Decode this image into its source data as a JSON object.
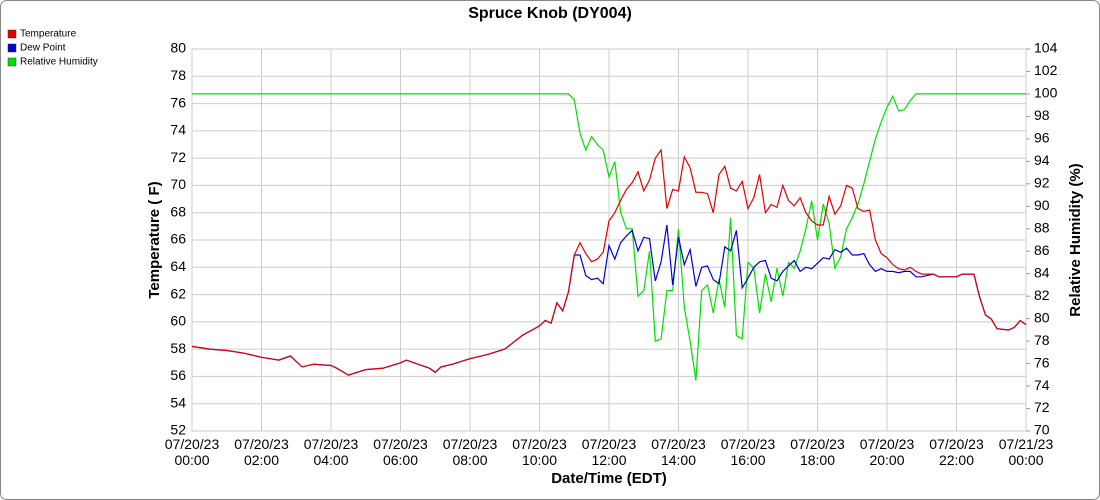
{
  "chart_data": {
    "type": "line",
    "title": "Spruce Knob (DY004)",
    "x_label": "Date/Time (EDT)",
    "y_label": "Temperature ( F)",
    "y2_label": "Relative Humidity (%)",
    "xlim": [
      "07/20/23 00:00",
      "07/21/23 00:00"
    ],
    "xticks": [
      "07/20/23 00:00",
      "07/20/23 02:00",
      "07/20/23 04:00",
      "07/20/23 06:00",
      "07/20/23 08:00",
      "07/20/23 10:00",
      "07/20/23 12:00",
      "07/20/23 14:00",
      "07/20/23 16:00",
      "07/20/23 18:00",
      "07/20/23 20:00",
      "07/20/23 22:00",
      "07/21/23 00:00"
    ],
    "ylim": [
      52,
      80
    ],
    "yticks": [
      52,
      54,
      56,
      58,
      60,
      62,
      64,
      66,
      68,
      70,
      72,
      74,
      76,
      78,
      80
    ],
    "y2lim": [
      70,
      104
    ],
    "y2ticks": [
      70,
      72,
      74,
      76,
      78,
      80,
      82,
      84,
      86,
      88,
      90,
      92,
      94,
      96,
      98,
      100,
      102,
      104
    ],
    "grid": true,
    "legend": "top-left",
    "x": [
      "07/20/23 00:00",
      "07/20/23 00:30",
      "07/20/23 01:00",
      "07/20/23 01:30",
      "07/20/23 02:00",
      "07/20/23 02:30",
      "07/20/23 02:50",
      "07/20/23 03:10",
      "07/20/23 03:30",
      "07/20/23 04:00",
      "07/20/23 04:10",
      "07/20/23 04:30",
      "07/20/23 05:00",
      "07/20/23 05:30",
      "07/20/23 06:00",
      "07/20/23 06:10",
      "07/20/23 06:30",
      "07/20/23 06:50",
      "07/20/23 07:00",
      "07/20/23 07:10",
      "07/20/23 07:30",
      "07/20/23 08:00",
      "07/20/23 08:30",
      "07/20/23 09:00",
      "07/20/23 09:30",
      "07/20/23 10:00",
      "07/20/23 10:10",
      "07/20/23 10:20",
      "07/20/23 10:30",
      "07/20/23 10:40",
      "07/20/23 10:50",
      "07/20/23 11:00",
      "07/20/23 11:10",
      "07/20/23 11:20",
      "07/20/23 11:30",
      "07/20/23 11:40",
      "07/20/23 11:50",
      "07/20/23 12:00",
      "07/20/23 12:10",
      "07/20/23 12:20",
      "07/20/23 12:30",
      "07/20/23 12:40",
      "07/20/23 12:50",
      "07/20/23 13:00",
      "07/20/23 13:10",
      "07/20/23 13:20",
      "07/20/23 13:30",
      "07/20/23 13:40",
      "07/20/23 13:50",
      "07/20/23 14:00",
      "07/20/23 14:10",
      "07/20/23 14:20",
      "07/20/23 14:30",
      "07/20/23 14:40",
      "07/20/23 14:50",
      "07/20/23 15:00",
      "07/20/23 15:10",
      "07/20/23 15:20",
      "07/20/23 15:30",
      "07/20/23 15:40",
      "07/20/23 15:50",
      "07/20/23 16:00",
      "07/20/23 16:10",
      "07/20/23 16:20",
      "07/20/23 16:30",
      "07/20/23 16:40",
      "07/20/23 16:50",
      "07/20/23 17:00",
      "07/20/23 17:10",
      "07/20/23 17:20",
      "07/20/23 17:30",
      "07/20/23 17:40",
      "07/20/23 17:50",
      "07/20/23 18:00",
      "07/20/23 18:10",
      "07/20/23 18:20",
      "07/20/23 18:30",
      "07/20/23 18:40",
      "07/20/23 18:50",
      "07/20/23 19:00",
      "07/20/23 19:10",
      "07/20/23 19:20",
      "07/20/23 19:30",
      "07/20/23 19:40",
      "07/20/23 19:50",
      "07/20/23 20:00",
      "07/20/23 20:10",
      "07/20/23 20:20",
      "07/20/23 20:30",
      "07/20/23 20:40",
      "07/20/23 20:50",
      "07/20/23 21:00",
      "07/20/23 21:20",
      "07/20/23 21:30",
      "07/20/23 22:00",
      "07/20/23 22:10",
      "07/20/23 22:30",
      "07/20/23 22:40",
      "07/20/23 22:50",
      "07/20/23 23:00",
      "07/20/23 23:10",
      "07/20/23 23:30",
      "07/20/23 23:40",
      "07/20/23 23:50",
      "07/21/23 00:00"
    ],
    "series": [
      {
        "name": "Temperature",
        "color": "#e00000",
        "values": [
          58.2,
          58.0,
          57.9,
          57.7,
          57.4,
          57.2,
          57.5,
          56.7,
          56.9,
          56.8,
          56.6,
          56.1,
          56.5,
          56.6,
          57.0,
          57.2,
          56.9,
          56.6,
          56.3,
          56.7,
          56.9,
          57.3,
          57.6,
          58.0,
          59.0,
          59.7,
          60.1,
          59.9,
          61.4,
          60.8,
          62.2,
          64.9,
          65.8,
          65.0,
          64.4,
          64.6,
          65.1,
          67.4,
          68.0,
          68.9,
          69.7,
          70.2,
          71.0,
          69.6,
          70.4,
          72.0,
          72.6,
          68.3,
          69.7,
          69.6,
          72.1,
          71.3,
          69.5,
          69.5,
          69.4,
          68.0,
          70.8,
          71.4,
          69.8,
          69.6,
          70.3,
          68.3,
          69.1,
          70.8,
          68.0,
          68.6,
          68.4,
          70.0,
          68.9,
          68.5,
          69.1,
          68.0,
          67.4,
          67.1,
          67.1,
          69.2,
          67.9,
          68.5,
          70.0,
          69.8,
          68.3,
          68.1,
          68.2,
          66.0,
          65.0,
          64.7,
          64.2,
          63.9,
          63.8,
          64.0,
          63.7,
          63.5,
          63.5,
          63.3,
          63.3,
          63.5,
          63.5,
          61.8,
          60.5,
          60.2,
          59.5,
          59.4,
          59.6,
          60.1,
          59.8
        ]
      },
      {
        "name": "Dew Point",
        "color": "#0000dd",
        "values": [
          58.2,
          58.0,
          57.9,
          57.7,
          57.4,
          57.2,
          57.5,
          56.7,
          56.9,
          56.8,
          56.6,
          56.1,
          56.5,
          56.6,
          57.0,
          57.2,
          56.9,
          56.6,
          56.3,
          56.7,
          56.9,
          57.3,
          57.6,
          58.0,
          59.0,
          59.7,
          60.1,
          59.9,
          61.4,
          60.8,
          62.2,
          64.9,
          64.9,
          63.4,
          63.1,
          63.2,
          62.8,
          65.6,
          64.6,
          65.8,
          66.3,
          66.7,
          65.2,
          66.2,
          66.1,
          63.0,
          64.4,
          67.1,
          62.7,
          66.2,
          64.2,
          65.3,
          62.6,
          64.0,
          64.1,
          63.1,
          62.8,
          65.5,
          65.2,
          66.7,
          62.5,
          63.2,
          64.0,
          64.4,
          64.5,
          63.2,
          63.0,
          63.7,
          64.1,
          64.5,
          63.7,
          64.0,
          63.9,
          64.3,
          64.7,
          64.6,
          65.3,
          65.1,
          65.4,
          64.9,
          64.9,
          65.0,
          64.2,
          63.7,
          63.9,
          63.7,
          63.7,
          63.6,
          63.7,
          63.7,
          63.3,
          63.3,
          63.5,
          63.3,
          63.3,
          63.5,
          63.5,
          61.8,
          60.5,
          60.2,
          59.5,
          59.4,
          59.6,
          60.1,
          59.8
        ]
      },
      {
        "name": "Relative Humidity",
        "color": "#00e000",
        "axis": "y2",
        "values": [
          100,
          100,
          100,
          100,
          100,
          100,
          100,
          100,
          100,
          100,
          100,
          100,
          100,
          100,
          100,
          100,
          100,
          100,
          100,
          100,
          100,
          100,
          100,
          100,
          100,
          100,
          100,
          100,
          100,
          100,
          100,
          99.5,
          96.5,
          95.0,
          96.2,
          95.5,
          95.0,
          92.6,
          94.0,
          89.5,
          88.0,
          88.0,
          82.0,
          82.5,
          86.0,
          78.0,
          78.2,
          82.5,
          82.5,
          88.0,
          81.0,
          78.0,
          74.5,
          82.5,
          83.0,
          80.5,
          83.5,
          81.0,
          89.0,
          78.5,
          78.2,
          85.0,
          84.5,
          80.5,
          84.0,
          81.5,
          84.5,
          82.0,
          85.0,
          84.5,
          86.0,
          88.0,
          90.5,
          87.0,
          90.2,
          88.5,
          84.5,
          85.5,
          88.0,
          89.0,
          90.2,
          92.0,
          94.0,
          96.0,
          97.5,
          98.8,
          99.8,
          98.5,
          98.6,
          99.4,
          100,
          100,
          100,
          100,
          100,
          100,
          100,
          100,
          100,
          100,
          100,
          100,
          100,
          100,
          100
        ]
      }
    ]
  }
}
